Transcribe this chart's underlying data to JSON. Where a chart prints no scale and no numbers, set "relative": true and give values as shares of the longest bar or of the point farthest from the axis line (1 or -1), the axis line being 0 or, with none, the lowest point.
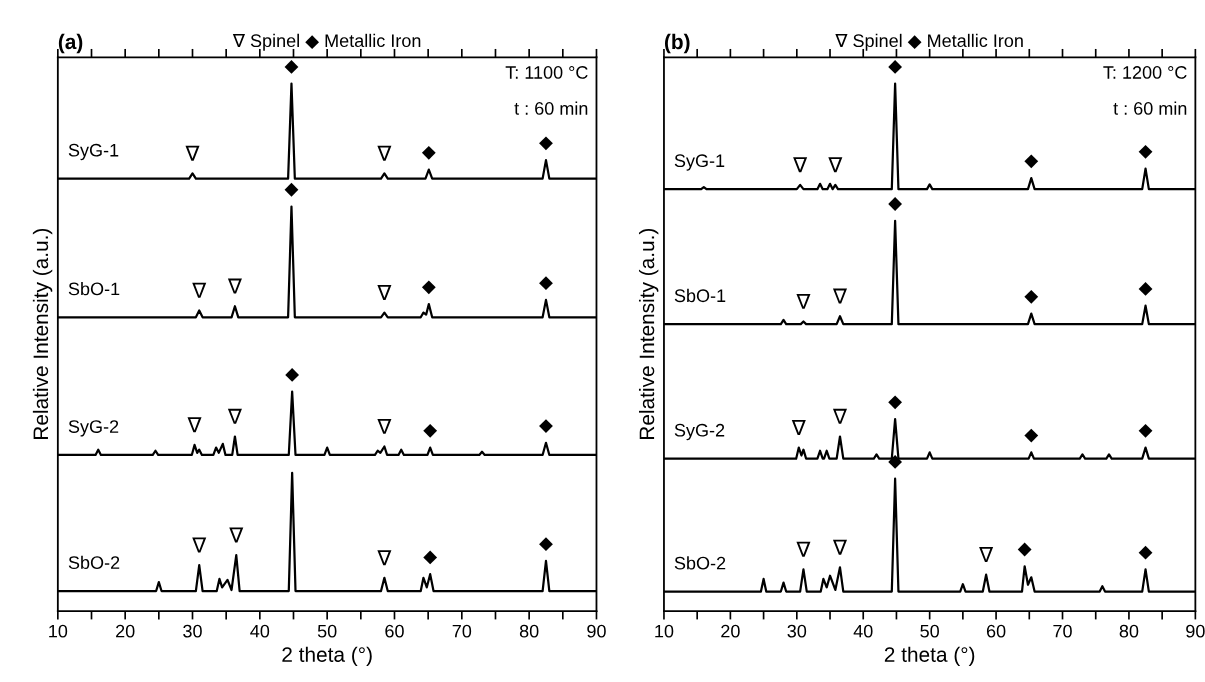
{
  "chart_data": [
    {
      "type": "line",
      "title": "(a)",
      "xlabel": "2 theta (°)",
      "ylabel": "Relative Intensity (a.u.)",
      "relative": true,
      "tick_labels": "x",
      "grid": false,
      "legend": false,
      "marker": "none",
      "line_style": "solid",
      "xlim": [
        10,
        90
      ],
      "xticks": [
        10,
        {
          "value": 15,
          "label": null
        },
        20,
        {
          "value": 25,
          "label": null
        },
        30,
        {
          "value": 35,
          "label": null
        },
        40,
        {
          "value": 45,
          "label": null
        },
        50,
        {
          "value": 55,
          "label": null
        },
        60,
        {
          "value": 65,
          "label": null
        },
        70,
        {
          "value": 75,
          "label": null
        },
        80,
        {
          "value": 85,
          "label": null
        },
        90
      ],
      "series": [
        {
          "name": "SyG-1",
          "color": "#000000",
          "x": [
            10,
            29.5,
            30,
            30.5,
            44.2,
            44.7,
            45.2,
            58,
            58.5,
            59,
            64.6,
            65.1,
            65.6,
            82,
            82.5,
            83,
            90
          ],
          "values": [
            0.82,
            0.82,
            0.83,
            0.82,
            0.82,
            1,
            0.82,
            0.82,
            0.83,
            0.82,
            0.82,
            0.837,
            0.82,
            0.82,
            0.855,
            0.82,
            0.82
          ]
        },
        {
          "name": "SbO-1",
          "color": "#000000",
          "x": [
            10,
            30.5,
            31,
            31.5,
            35.8,
            36.3,
            36.8,
            44.2,
            44.7,
            45.2,
            58,
            58.5,
            59,
            63.9,
            64.3,
            64.7,
            65.1,
            65.6,
            82,
            82.5,
            83,
            90
          ],
          "values": [
            0.557,
            0.557,
            0.57,
            0.557,
            0.557,
            0.578,
            0.557,
            0.557,
            0.767,
            0.557,
            0.557,
            0.566,
            0.557,
            0.557,
            0.566,
            0.562,
            0.582,
            0.557,
            0.557,
            0.59,
            0.557,
            0.557
          ]
        },
        {
          "name": "SyG-2",
          "color": "#000000",
          "x": [
            10,
            15.6,
            16,
            16.4,
            24.1,
            24.5,
            24.9,
            29.9,
            30.3,
            30.7,
            31,
            31.4,
            33.1,
            33.5,
            33.9,
            34.5,
            34.9,
            35.9,
            36.3,
            36.7,
            44.3,
            44.8,
            45.3,
            49.6,
            50,
            50.4,
            57.1,
            57.5,
            57.9,
            58.5,
            58.9,
            60.6,
            61,
            61.4,
            64.9,
            65.3,
            65.7,
            72.6,
            73,
            73.4,
            82,
            82.5,
            83,
            90
          ],
          "values": [
            0.296,
            0.296,
            0.306,
            0.296,
            0.296,
            0.304,
            0.296,
            0.296,
            0.315,
            0.3,
            0.306,
            0.296,
            0.296,
            0.31,
            0.3,
            0.317,
            0.296,
            0.296,
            0.331,
            0.296,
            0.296,
            0.416,
            0.296,
            0.296,
            0.31,
            0.296,
            0.296,
            0.304,
            0.3,
            0.312,
            0.296,
            0.296,
            0.306,
            0.296,
            0.296,
            0.31,
            0.296,
            0.296,
            0.302,
            0.296,
            0.296,
            0.319,
            0.296,
            0.296
          ]
        },
        {
          "name": "SbO-2",
          "color": "#000000",
          "x": [
            10,
            24.6,
            25,
            25.4,
            30.5,
            31,
            31.5,
            33.6,
            34,
            34.4,
            35.2,
            35.8,
            36.5,
            37,
            44.3,
            44.8,
            45.3,
            58,
            58.5,
            59,
            63.9,
            64.3,
            64.8,
            65.3,
            65.8,
            82,
            82.5,
            83,
            90
          ],
          "values": [
            0.038,
            0.038,
            0.055,
            0.038,
            0.038,
            0.087,
            0.038,
            0.038,
            0.061,
            0.045,
            0.059,
            0.04,
            0.106,
            0.038,
            0.038,
            0.262,
            0.038,
            0.038,
            0.063,
            0.038,
            0.038,
            0.063,
            0.045,
            0.07,
            0.038,
            0.038,
            0.095,
            0.038,
            0.038
          ]
        }
      ],
      "annotations": [
        "∇ Spinel ◆ Metallic Iron",
        "T: 1100 °C",
        "t : 60 min",
        {
          "text": "∇",
          "x": 30,
          "y": 0.83
        },
        {
          "text": "◆",
          "x": 44.7,
          "y": 1
        },
        {
          "text": "∇",
          "x": 58.5,
          "y": 0.83
        },
        {
          "text": "◆",
          "x": 65.1,
          "y": 0.837
        },
        {
          "text": "◆",
          "x": 82.5,
          "y": 0.855
        },
        {
          "text": "∇",
          "x": 31,
          "y": 0.57
        },
        {
          "text": "∇",
          "x": 36.3,
          "y": 0.578
        },
        {
          "text": "◆",
          "x": 44.7,
          "y": 0.767
        },
        {
          "text": "∇",
          "x": 58.5,
          "y": 0.566
        },
        {
          "text": "◆",
          "x": 65.1,
          "y": 0.582
        },
        {
          "text": "◆",
          "x": 82.5,
          "y": 0.59
        },
        {
          "text": "∇",
          "x": 30.3,
          "y": 0.315
        },
        {
          "text": "∇",
          "x": 36.3,
          "y": 0.331
        },
        {
          "text": "◆",
          "x": 44.8,
          "y": 0.416
        },
        {
          "text": "∇",
          "x": 58.5,
          "y": 0.312
        },
        {
          "text": "◆",
          "x": 65.3,
          "y": 0.31
        },
        {
          "text": "◆",
          "x": 82.5,
          "y": 0.319
        },
        {
          "text": "∇",
          "x": 31,
          "y": 0.087
        },
        {
          "text": "∇",
          "x": 36.5,
          "y": 0.106
        },
        {
          "text": "∇",
          "x": 58.5,
          "y": 0.063
        },
        {
          "text": "◆",
          "x": 65.3,
          "y": 0.07
        },
        {
          "text": "◆",
          "x": 82.5,
          "y": 0.095
        }
      ]
    },
    {
      "type": "line",
      "title": "(b)",
      "xlabel": "2 theta (°)",
      "ylabel": "Relative Intensity (a.u.)",
      "relative": true,
      "tick_labels": "x",
      "grid": false,
      "legend": false,
      "marker": "none",
      "line_style": "solid",
      "xlim": [
        10,
        90
      ],
      "xticks": [
        10,
        {
          "value": 15,
          "label": null
        },
        20,
        {
          "value": 25,
          "label": null
        },
        30,
        {
          "value": 35,
          "label": null
        },
        40,
        {
          "value": 45,
          "label": null
        },
        50,
        {
          "value": 55,
          "label": null
        },
        60,
        {
          "value": 65,
          "label": null
        },
        70,
        {
          "value": 75,
          "label": null
        },
        80,
        {
          "value": 85,
          "label": null
        },
        90
      ],
      "series": [
        {
          "name": "SyG-1",
          "color": "#000000",
          "x": [
            10,
            15.6,
            16,
            16.4,
            30,
            30.5,
            31,
            33.1,
            33.5,
            33.9,
            34.6,
            35,
            35.4,
            35.8,
            36.2,
            44.3,
            44.8,
            45.3,
            49.6,
            50,
            50.4,
            64.8,
            65.3,
            65.8,
            82,
            82.5,
            83,
            90
          ],
          "values": [
            0.8,
            0.8,
            0.804,
            0.8,
            0.8,
            0.808,
            0.8,
            0.8,
            0.81,
            0.8,
            0.8,
            0.81,
            0.8,
            0.808,
            0.8,
            0.8,
            1,
            0.8,
            0.8,
            0.809,
            0.8,
            0.8,
            0.821,
            0.8,
            0.8,
            0.839,
            0.8,
            0.8
          ]
        },
        {
          "name": "SbO-1",
          "color": "#000000",
          "x": [
            10,
            27.6,
            28,
            28.4,
            30.6,
            31,
            31.4,
            36,
            36.5,
            37,
            44.3,
            44.8,
            45.3,
            64.8,
            65.3,
            65.8,
            82,
            82.5,
            83,
            90
          ],
          "values": [
            0.544,
            0.544,
            0.552,
            0.544,
            0.544,
            0.549,
            0.544,
            0.544,
            0.559,
            0.544,
            0.544,
            0.74,
            0.544,
            0.544,
            0.564,
            0.544,
            0.544,
            0.579,
            0.544,
            0.544
          ]
        },
        {
          "name": "SyG-2",
          "color": "#000000",
          "x": [
            10,
            29.9,
            30.3,
            30.7,
            31,
            31.4,
            33.1,
            33.5,
            33.9,
            34.1,
            34.5,
            34.9,
            36,
            36.5,
            37,
            41.6,
            42,
            42.4,
            44.3,
            44.8,
            45.3,
            49.6,
            50,
            50.4,
            64.9,
            65.3,
            65.7,
            72.6,
            73,
            73.4,
            76.6,
            77,
            77.4,
            82,
            82.5,
            83,
            90
          ],
          "values": [
            0.289,
            0.289,
            0.31,
            0.295,
            0.306,
            0.289,
            0.289,
            0.304,
            0.289,
            0.289,
            0.304,
            0.289,
            0.289,
            0.331,
            0.289,
            0.289,
            0.297,
            0.289,
            0.289,
            0.364,
            0.289,
            0.289,
            0.301,
            0.289,
            0.289,
            0.301,
            0.289,
            0.289,
            0.297,
            0.289,
            0.289,
            0.297,
            0.289,
            0.289,
            0.31,
            0.289,
            0.289
          ]
        },
        {
          "name": "SbO-2",
          "color": "#000000",
          "x": [
            10,
            24.6,
            25,
            25.4,
            27.6,
            28,
            28.4,
            30.5,
            31,
            31.5,
            33.6,
            34,
            34.5,
            35,
            35.8,
            36.5,
            37,
            44.3,
            44.8,
            45.3,
            54.6,
            55,
            55.4,
            58,
            58.5,
            59,
            63.9,
            64.3,
            64.8,
            65.3,
            65.8,
            75.6,
            76,
            76.4,
            82,
            82.5,
            83,
            90
          ],
          "values": [
            0.037,
            0.037,
            0.061,
            0.037,
            0.037,
            0.054,
            0.037,
            0.037,
            0.079,
            0.037,
            0.037,
            0.061,
            0.045,
            0.067,
            0.04,
            0.083,
            0.037,
            0.037,
            0.251,
            0.037,
            0.037,
            0.051,
            0.037,
            0.037,
            0.069,
            0.037,
            0.037,
            0.085,
            0.05,
            0.064,
            0.037,
            0.037,
            0.047,
            0.037,
            0.037,
            0.079,
            0.037,
            0.037
          ]
        }
      ],
      "annotations": [
        "∇ Spinel ◆ Metallic Iron",
        "T: 1200 °C",
        "t : 60 min",
        {
          "text": "∇",
          "x": 30.5,
          "y": 0.808
        },
        {
          "text": "∇",
          "x": 35.8,
          "y": 0.808
        },
        {
          "text": "◆",
          "x": 44.8,
          "y": 1
        },
        {
          "text": "◆",
          "x": 65.3,
          "y": 0.821
        },
        {
          "text": "◆",
          "x": 82.5,
          "y": 0.839
        },
        {
          "text": "∇",
          "x": 31,
          "y": 0.549
        },
        {
          "text": "∇",
          "x": 36.5,
          "y": 0.559
        },
        {
          "text": "◆",
          "x": 44.8,
          "y": 0.74
        },
        {
          "text": "◆",
          "x": 65.3,
          "y": 0.564
        },
        {
          "text": "◆",
          "x": 82.5,
          "y": 0.579
        },
        {
          "text": "∇",
          "x": 30.3,
          "y": 0.31
        },
        {
          "text": "∇",
          "x": 36.5,
          "y": 0.331
        },
        {
          "text": "◆",
          "x": 44.8,
          "y": 0.364
        },
        {
          "text": "◆",
          "x": 65.3,
          "y": 0.301
        },
        {
          "text": "◆",
          "x": 82.5,
          "y": 0.31
        },
        {
          "text": "∇",
          "x": 31,
          "y": 0.079
        },
        {
          "text": "∇",
          "x": 36.5,
          "y": 0.083
        },
        {
          "text": "◆",
          "x": 44.8,
          "y": 0.251
        },
        {
          "text": "∇",
          "x": 58.5,
          "y": 0.069
        },
        {
          "text": "◆",
          "x": 64.3,
          "y": 0.085
        },
        {
          "text": "◆",
          "x": 82.5,
          "y": 0.079
        }
      ]
    }
  ]
}
